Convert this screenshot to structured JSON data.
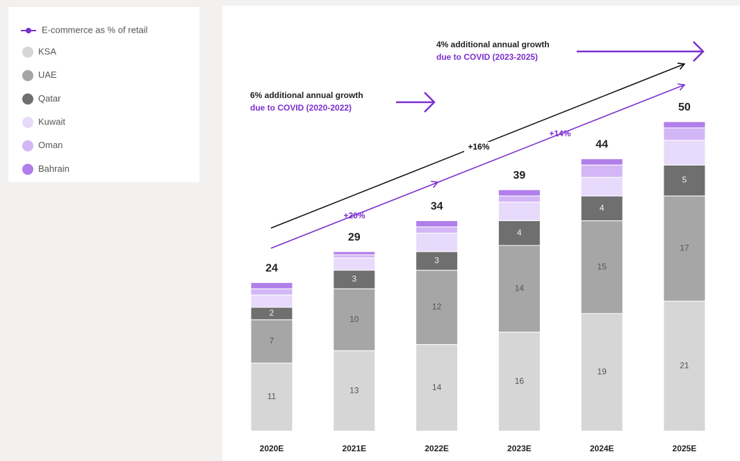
{
  "chart_data": {
    "type": "stacked_bar",
    "categories": [
      "2020E",
      "2021E",
      "2022E",
      "2023E",
      "2024E",
      "2025E"
    ],
    "series": [
      {
        "name": "KSA",
        "color": "#d6d6d6",
        "values": [
          11,
          13,
          14,
          16,
          19,
          21
        ],
        "data_labels": true
      },
      {
        "name": "UAE",
        "color": "#a6a6a6",
        "values": [
          7,
          10,
          12,
          14,
          15,
          17
        ],
        "data_labels": true
      },
      {
        "name": "Qatar",
        "color": "#6f6f6f",
        "values": [
          2,
          3,
          3,
          4,
          4,
          5
        ],
        "data_labels": true
      },
      {
        "name": "Kuwait",
        "color": "#e8dafb",
        "values": [
          2,
          2,
          3,
          3,
          3,
          4
        ],
        "data_labels": false
      },
      {
        "name": "Oman",
        "color": "#d3b6f6",
        "values": [
          1,
          0.5,
          1,
          1,
          2,
          2
        ],
        "data_labels": false
      },
      {
        "name": "Bahrain",
        "color": "#b17fea",
        "values": [
          1,
          0.5,
          1,
          1,
          1,
          1
        ],
        "data_labels": false
      }
    ],
    "totals": [
      24,
      29,
      34,
      39,
      44,
      50
    ],
    "trend_legend": {
      "name": "E-commerce as % of retail",
      "color": "#7b2fd0"
    },
    "growth_labels": {
      "upper": "+16%",
      "lower_first": "+20%",
      "lower_second": "+14%"
    },
    "annotations": [
      {
        "line1": "6% additional annual growth",
        "line2": "due to COVID (2020-2022)"
      },
      {
        "line1": "4% additional annual growth",
        "line2": "due to COVID (2023-2025)"
      }
    ]
  }
}
